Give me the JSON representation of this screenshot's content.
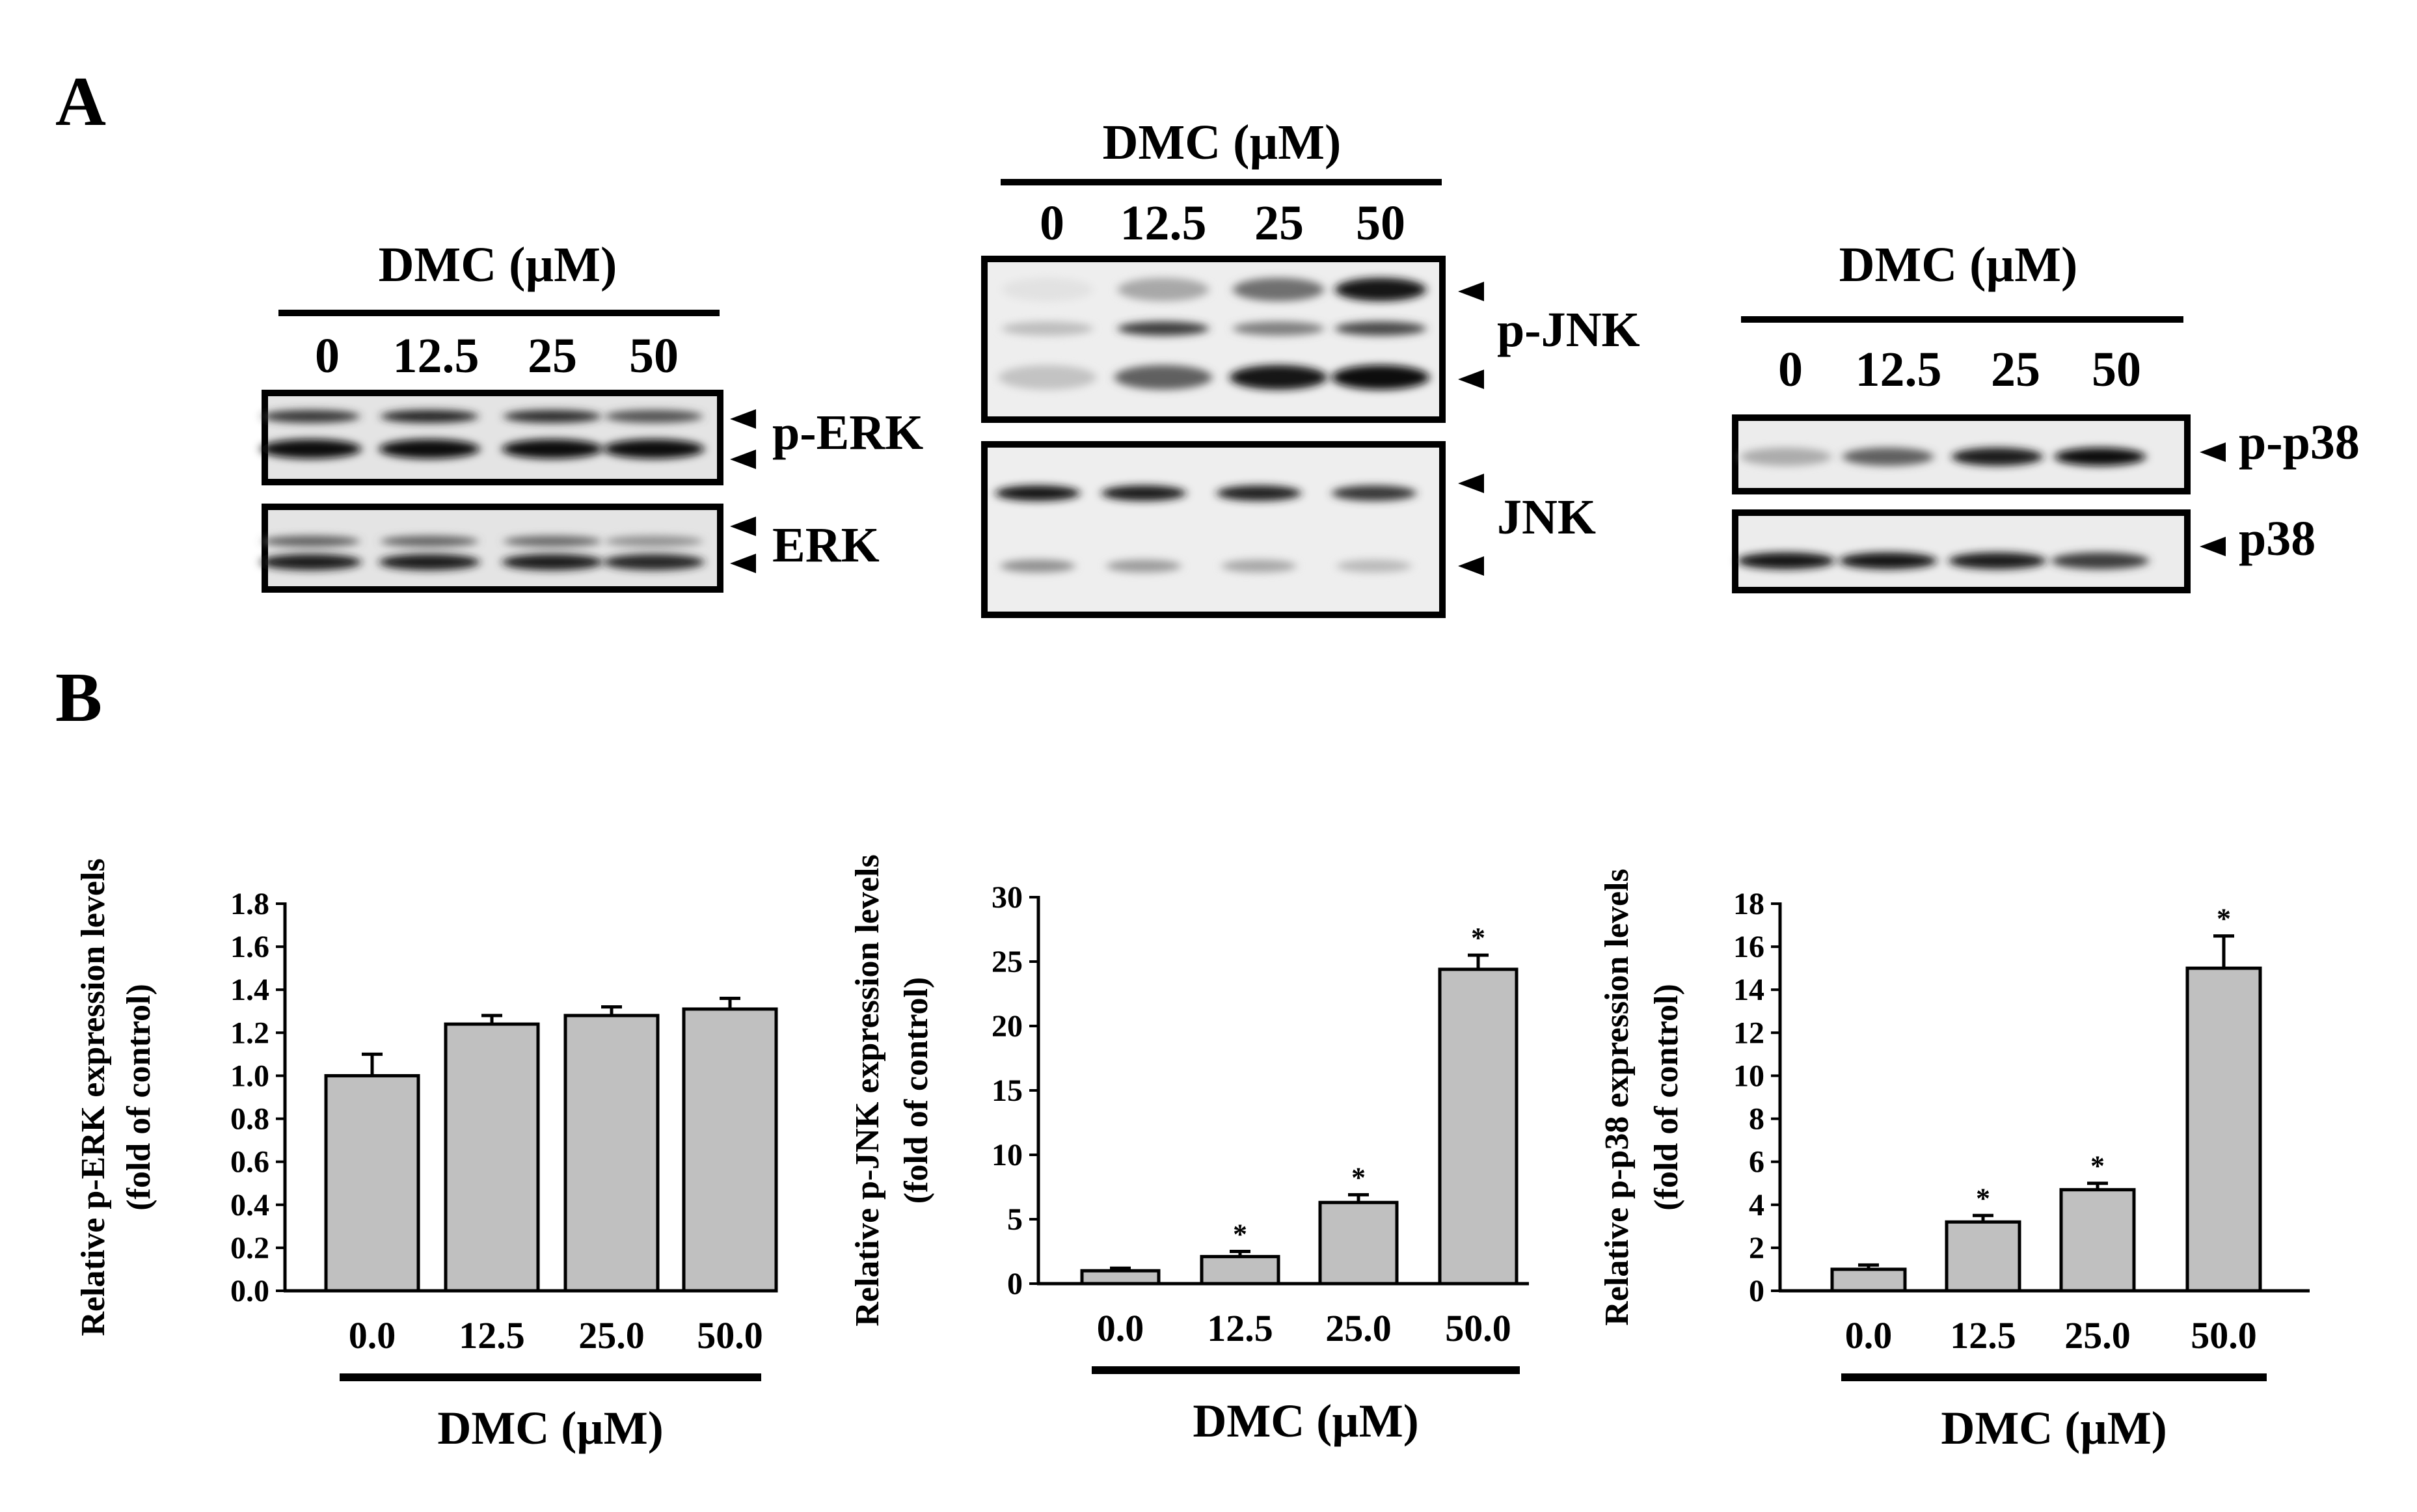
{
  "panel_labels": [
    "A",
    "B"
  ],
  "blots": [
    {
      "header": "DMC (µM)",
      "lanes": [
        "0",
        "12.5",
        "25",
        "50"
      ],
      "boxes": [
        {
          "label": "p-ERK",
          "bands": [
            {
              "intensity": [
                0.8,
                0.88,
                0.84,
                0.68
              ]
            },
            {
              "intensity": [
                0.97,
                0.99,
                0.99,
                0.97
              ]
            }
          ]
        },
        {
          "label": "ERK",
          "bands": [
            {
              "intensity": [
                0.62,
                0.6,
                0.58,
                0.4
              ]
            },
            {
              "intensity": [
                0.93,
                0.92,
                0.92,
                0.88
              ]
            }
          ]
        }
      ]
    },
    {
      "header": "DMC (µM)",
      "lanes": [
        "0",
        "12.5",
        "25",
        "50"
      ],
      "boxes": [
        {
          "label": "p-JNK",
          "bands": [
            {
              "intensity": [
                0.04,
                0.3,
                0.55,
                0.96
              ]
            },
            {
              "intensity": [
                0.2,
                0.78,
                0.48,
                0.72
              ]
            },
            {
              "intensity": [
                0.18,
                0.62,
                0.95,
                1.0
              ]
            }
          ]
        },
        {
          "label": "JNK",
          "bands": [
            {
              "intensity": [
                0.96,
                0.93,
                0.9,
                0.8
              ]
            },
            {
              "intensity": [
                0.4,
                0.35,
                0.3,
                0.22
              ]
            }
          ]
        }
      ]
    },
    {
      "header": "DMC (µM)",
      "lanes": [
        "0",
        "12.5",
        "25",
        "50"
      ],
      "boxes": [
        {
          "label": "p-p38",
          "bands": [
            {
              "intensity": [
                0.28,
                0.62,
                0.92,
                1.0
              ]
            }
          ]
        },
        {
          "label": "p38",
          "bands": [
            {
              "intensity": [
                0.95,
                0.95,
                0.92,
                0.78
              ]
            }
          ]
        }
      ]
    }
  ],
  "chart_data": [
    {
      "type": "bar",
      "categories": [
        "0.0",
        "12.5",
        "25.0",
        "50.0"
      ],
      "values": [
        1.0,
        1.24,
        1.28,
        1.31
      ],
      "errors": [
        0.1,
        0.04,
        0.04,
        0.05
      ],
      "significant": [
        false,
        false,
        false,
        false
      ],
      "significance_marker": "*",
      "ylabel": "Relative p-ERK expression levels",
      "ylabel_sub": "(fold of control)",
      "xlabel": "DMC (µM)",
      "ylim": [
        0,
        1.8
      ],
      "yticks": [
        "0.0",
        "0.2",
        "0.4",
        "0.6",
        "0.8",
        "1.0",
        "1.2",
        "1.4",
        "1.6",
        "1.8"
      ],
      "grid": false,
      "bar_color": "#c0c0c0"
    },
    {
      "type": "bar",
      "categories": [
        "0.0",
        "12.5",
        "25.0",
        "50.0"
      ],
      "values": [
        1.0,
        2.1,
        6.3,
        24.4
      ],
      "errors": [
        0.2,
        0.4,
        0.6,
        1.1
      ],
      "significant": [
        false,
        true,
        true,
        true
      ],
      "significance_marker": "*",
      "ylabel": "Relative p-JNK expression levels",
      "ylabel_sub": "(fold of control)",
      "xlabel": "DMC (µM)",
      "ylim": [
        0,
        30
      ],
      "yticks": [
        "0",
        "5",
        "10",
        "15",
        "20",
        "25",
        "30"
      ],
      "grid": false,
      "bar_color": "#c0c0c0"
    },
    {
      "type": "bar",
      "categories": [
        "0.0",
        "12.5",
        "25.0",
        "50.0"
      ],
      "values": [
        1.0,
        3.2,
        4.7,
        15.0
      ],
      "errors": [
        0.2,
        0.3,
        0.3,
        1.5
      ],
      "significant": [
        false,
        true,
        true,
        true
      ],
      "significance_marker": "*",
      "ylabel": "Relative p-p38 expression levels",
      "ylabel_sub": "(fold of control)",
      "xlabel": "DMC (µM)",
      "ylim": [
        0,
        18
      ],
      "yticks": [
        "0",
        "2",
        "4",
        "6",
        "8",
        "10",
        "12",
        "14",
        "16",
        "18"
      ],
      "grid": false,
      "bar_color": "#c0c0c0"
    }
  ]
}
